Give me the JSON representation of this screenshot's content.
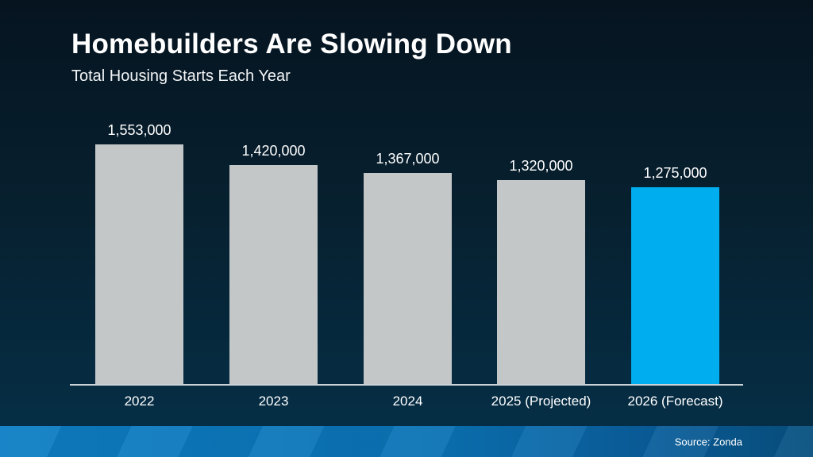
{
  "header": {
    "title": "Homebuilders Are Slowing Down",
    "subtitle": "Total Housing Starts Each Year"
  },
  "footer": {
    "source_label": "Source: Zonda"
  },
  "chart_data": {
    "type": "bar",
    "title": "Homebuilders Are Slowing Down",
    "subtitle": "Total Housing Starts Each Year",
    "categories": [
      "2022",
      "2023",
      "2024",
      "2025 (Projected)",
      "2026 (Forecast)"
    ],
    "values": [
      1553000,
      1420000,
      1367000,
      1320000,
      1275000
    ],
    "value_labels": [
      "1,553,000",
      "1,420,000",
      "1,367,000",
      "1,320,000",
      "1,275,000"
    ],
    "xlabel": "",
    "ylabel": "",
    "ylim": [
      0,
      1600000
    ],
    "grid": false,
    "legend": "none",
    "highlight_index": 4,
    "colors": {
      "bar_default": "#c3c7c8",
      "bar_highlight": "#00aeef",
      "axis_line": "#ccd3d7",
      "background_top": "#061420",
      "background_bottom": "#053049",
      "footer_left": "#0d7ec4",
      "footer_right": "#07507f",
      "text": "#ffffff"
    }
  }
}
